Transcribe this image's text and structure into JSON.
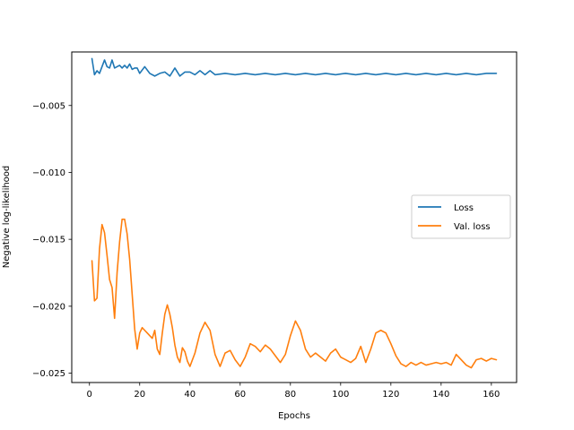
{
  "chart_data": {
    "type": "line",
    "xlabel": "Epochs",
    "ylabel": "Negative log-likelihood",
    "xlim": [
      -7.05,
      170.05
    ],
    "ylim": [
      -0.0257,
      -0.001
    ],
    "xticks": [
      0,
      20,
      40,
      60,
      80,
      100,
      120,
      140,
      160
    ],
    "yticks": [
      -0.025,
      -0.02,
      -0.015,
      -0.01,
      -0.005
    ],
    "ytick_labels": [
      "−0.025",
      "−0.020",
      "−0.015",
      "−0.010",
      "−0.005"
    ],
    "grid": false,
    "legend_position": "center-right",
    "series": [
      {
        "name": "Loss",
        "color": "#1f77b4",
        "x": [
          1,
          2,
          3,
          4,
          5,
          6,
          7,
          8,
          9,
          10,
          11,
          12,
          13,
          14,
          15,
          16,
          17,
          18,
          19,
          20,
          22,
          24,
          26,
          28,
          30,
          32,
          34,
          36,
          38,
          40,
          42,
          44,
          46,
          48,
          50,
          54,
          58,
          62,
          66,
          70,
          74,
          78,
          82,
          86,
          90,
          94,
          98,
          102,
          106,
          110,
          114,
          118,
          122,
          126,
          130,
          134,
          138,
          142,
          146,
          150,
          154,
          158,
          162
        ],
        "y": [
          -0.0015,
          -0.0027,
          -0.0024,
          -0.0026,
          -0.0021,
          -0.0016,
          -0.0021,
          -0.0022,
          -0.0016,
          -0.0022,
          -0.0021,
          -0.002,
          -0.0022,
          -0.002,
          -0.0022,
          -0.0019,
          -0.0023,
          -0.0022,
          -0.0022,
          -0.0026,
          -0.0021,
          -0.0026,
          -0.0028,
          -0.0026,
          -0.0025,
          -0.0028,
          -0.0022,
          -0.0028,
          -0.0025,
          -0.0025,
          -0.0027,
          -0.0024,
          -0.0027,
          -0.0024,
          -0.0027,
          -0.0026,
          -0.0027,
          -0.0026,
          -0.0027,
          -0.0026,
          -0.0027,
          -0.0026,
          -0.0027,
          -0.0026,
          -0.0027,
          -0.0026,
          -0.0027,
          -0.0026,
          -0.0027,
          -0.0026,
          -0.0027,
          -0.0026,
          -0.0027,
          -0.0026,
          -0.0027,
          -0.0026,
          -0.0027,
          -0.0026,
          -0.0027,
          -0.0026,
          -0.0027,
          -0.0026,
          -0.0026
        ]
      },
      {
        "name": "Val. loss",
        "color": "#ff7f0e",
        "x": [
          1,
          2,
          3,
          4,
          5,
          6,
          7,
          8,
          9,
          10,
          11,
          12,
          13,
          14,
          15,
          16,
          17,
          18,
          19,
          20,
          21,
          22,
          23,
          24,
          25,
          26,
          27,
          28,
          29,
          30,
          31,
          32,
          33,
          34,
          35,
          36,
          37,
          38,
          39,
          40,
          42,
          44,
          46,
          48,
          50,
          52,
          54,
          56,
          58,
          60,
          62,
          64,
          66,
          68,
          70,
          72,
          74,
          76,
          78,
          80,
          82,
          84,
          86,
          88,
          90,
          92,
          94,
          96,
          98,
          100,
          102,
          104,
          106,
          108,
          110,
          112,
          114,
          116,
          118,
          120,
          122,
          124,
          126,
          128,
          130,
          132,
          134,
          136,
          138,
          140,
          142,
          144,
          146,
          148,
          150,
          152,
          154,
          156,
          158,
          160,
          162
        ],
        "y": [
          -0.0166,
          -0.0196,
          -0.0194,
          -0.0157,
          -0.0139,
          -0.0145,
          -0.0162,
          -0.018,
          -0.0186,
          -0.0209,
          -0.0175,
          -0.0152,
          -0.0135,
          -0.0135,
          -0.0146,
          -0.0165,
          -0.0191,
          -0.0217,
          -0.0232,
          -0.022,
          -0.0216,
          -0.0218,
          -0.022,
          -0.0222,
          -0.0224,
          -0.0218,
          -0.0232,
          -0.0236,
          -0.022,
          -0.0206,
          -0.0199,
          -0.0206,
          -0.0216,
          -0.0229,
          -0.0238,
          -0.0242,
          -0.0231,
          -0.0234,
          -0.0241,
          -0.0245,
          -0.0235,
          -0.022,
          -0.0212,
          -0.0218,
          -0.0236,
          -0.0245,
          -0.0235,
          -0.0233,
          -0.024,
          -0.0245,
          -0.0238,
          -0.0228,
          -0.023,
          -0.0234,
          -0.0229,
          -0.0232,
          -0.0237,
          -0.0242,
          -0.0236,
          -0.0222,
          -0.0211,
          -0.0218,
          -0.0232,
          -0.0238,
          -0.0235,
          -0.0238,
          -0.0241,
          -0.0235,
          -0.0232,
          -0.0238,
          -0.024,
          -0.0242,
          -0.0239,
          -0.023,
          -0.0242,
          -0.0232,
          -0.022,
          -0.0218,
          -0.022,
          -0.0228,
          -0.0237,
          -0.0243,
          -0.0245,
          -0.0242,
          -0.0244,
          -0.0242,
          -0.0244,
          -0.0243,
          -0.0242,
          -0.0243,
          -0.0242,
          -0.0244,
          -0.0236,
          -0.024,
          -0.0244,
          -0.0246,
          -0.024,
          -0.0239,
          -0.0241,
          -0.0239,
          -0.024
        ]
      }
    ]
  }
}
